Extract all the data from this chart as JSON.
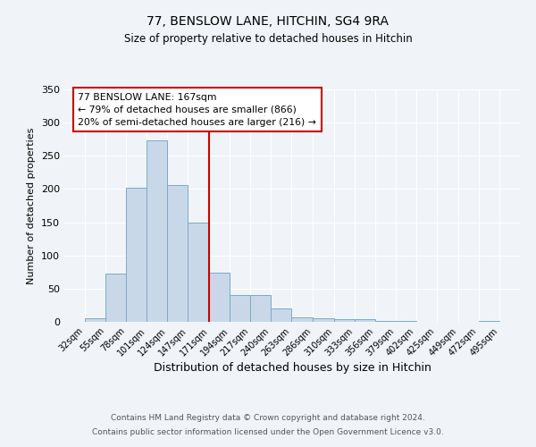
{
  "title": "77, BENSLOW LANE, HITCHIN, SG4 9RA",
  "subtitle": "Size of property relative to detached houses in Hitchin",
  "xlabel": "Distribution of detached houses by size in Hitchin",
  "ylabel": "Number of detached properties",
  "bar_color": "#c8d8e8",
  "bar_edge_color": "#7aaac8",
  "background_color": "#f0f4f8",
  "grid_color": "#ffffff",
  "annotation_box_color": "#cc0000",
  "vline_color": "#cc0000",
  "bin_edges": [
    32,
    55,
    78,
    101,
    124,
    147,
    171,
    194,
    217,
    240,
    263,
    286,
    310,
    333,
    356,
    379,
    402,
    425,
    449,
    472,
    495
  ],
  "bar_heights": [
    6,
    73,
    202,
    273,
    206,
    149,
    74,
    40,
    40,
    20,
    7,
    6,
    4,
    4,
    2,
    1,
    0,
    0,
    0,
    2
  ],
  "vline_x": 171,
  "ylim": [
    0,
    350
  ],
  "yticks": [
    0,
    50,
    100,
    150,
    200,
    250,
    300,
    350
  ],
  "annotation_title": "77 BENSLOW LANE: 167sqm",
  "annotation_line1": "← 79% of detached houses are smaller (866)",
  "annotation_line2": "20% of semi-detached houses are larger (216) →",
  "footer_line1": "Contains HM Land Registry data © Crown copyright and database right 2024.",
  "footer_line2": "Contains public sector information licensed under the Open Government Licence v3.0."
}
